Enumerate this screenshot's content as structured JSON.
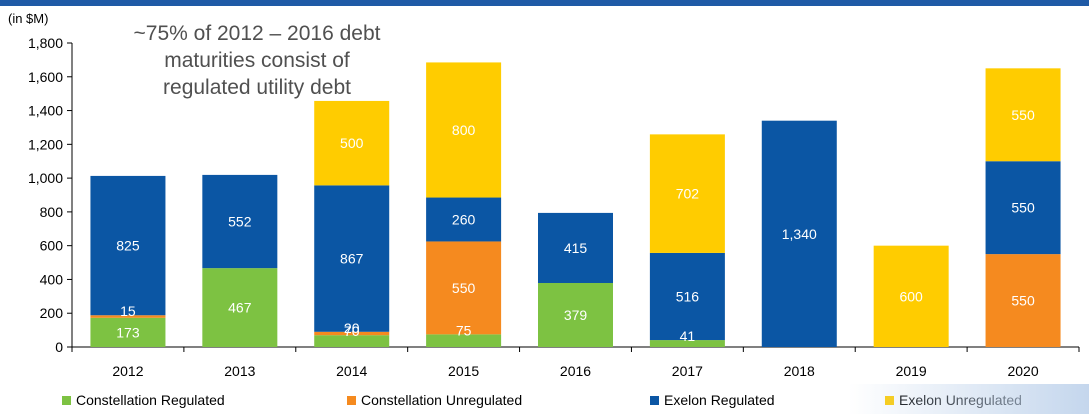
{
  "unit_label": "(in $M)",
  "callout": "~75% of 2012 – 2016 debt\nmaturities consist of\nregulated utility debt",
  "colors": {
    "header_rule": "#1f5aa6",
    "constellation_regulated": "#7dc242",
    "constellation_unregulated": "#f58a1f",
    "exelon_regulated": "#0b56a4",
    "exelon_unregulated": "#ffcc00"
  },
  "chart_data": {
    "type": "bar",
    "stacked": true,
    "categories": [
      "2012",
      "2013",
      "2014",
      "2015",
      "2016",
      "2017",
      "2018",
      "2019",
      "2020"
    ],
    "ylim": [
      0,
      1800
    ],
    "yticks": [
      0,
      200,
      400,
      600,
      800,
      1000,
      1200,
      1400,
      1600,
      1800
    ],
    "ytick_labels": [
      "0",
      "200",
      "400",
      "600",
      "800",
      "1,000",
      "1,200",
      "1,400",
      "1,600",
      "1,800"
    ],
    "ylabel": "(in $M)",
    "grid": false,
    "legend_position": "bottom",
    "series": [
      {
        "name": "Constellation Regulated",
        "color": "#7dc242",
        "values": [
          173,
          467,
          70,
          75,
          379,
          41,
          0,
          0,
          0
        ],
        "labels": [
          "173",
          "467",
          "70",
          "75",
          "379",
          "41",
          "",
          "",
          ""
        ]
      },
      {
        "name": "Constellation Unregulated",
        "color": "#f58a1f",
        "values": [
          15,
          0,
          20,
          550,
          0,
          0,
          0,
          0,
          550
        ],
        "labels": [
          "15",
          "",
          "20",
          "550",
          "",
          "",
          "",
          "",
          "550"
        ]
      },
      {
        "name": "Exelon Regulated",
        "color": "#0b56a4",
        "values": [
          825,
          552,
          867,
          260,
          415,
          516,
          1340,
          0,
          550
        ],
        "labels": [
          "825",
          "552",
          "867",
          "260",
          "415",
          "516",
          "1,340",
          "",
          "550"
        ]
      },
      {
        "name": "Exelon Unregulated",
        "color": "#ffcc00",
        "values": [
          0,
          0,
          500,
          800,
          0,
          702,
          0,
          600,
          550
        ],
        "labels": [
          "",
          "",
          "500",
          "800",
          "",
          "702",
          "",
          "600",
          "550"
        ]
      }
    ]
  }
}
